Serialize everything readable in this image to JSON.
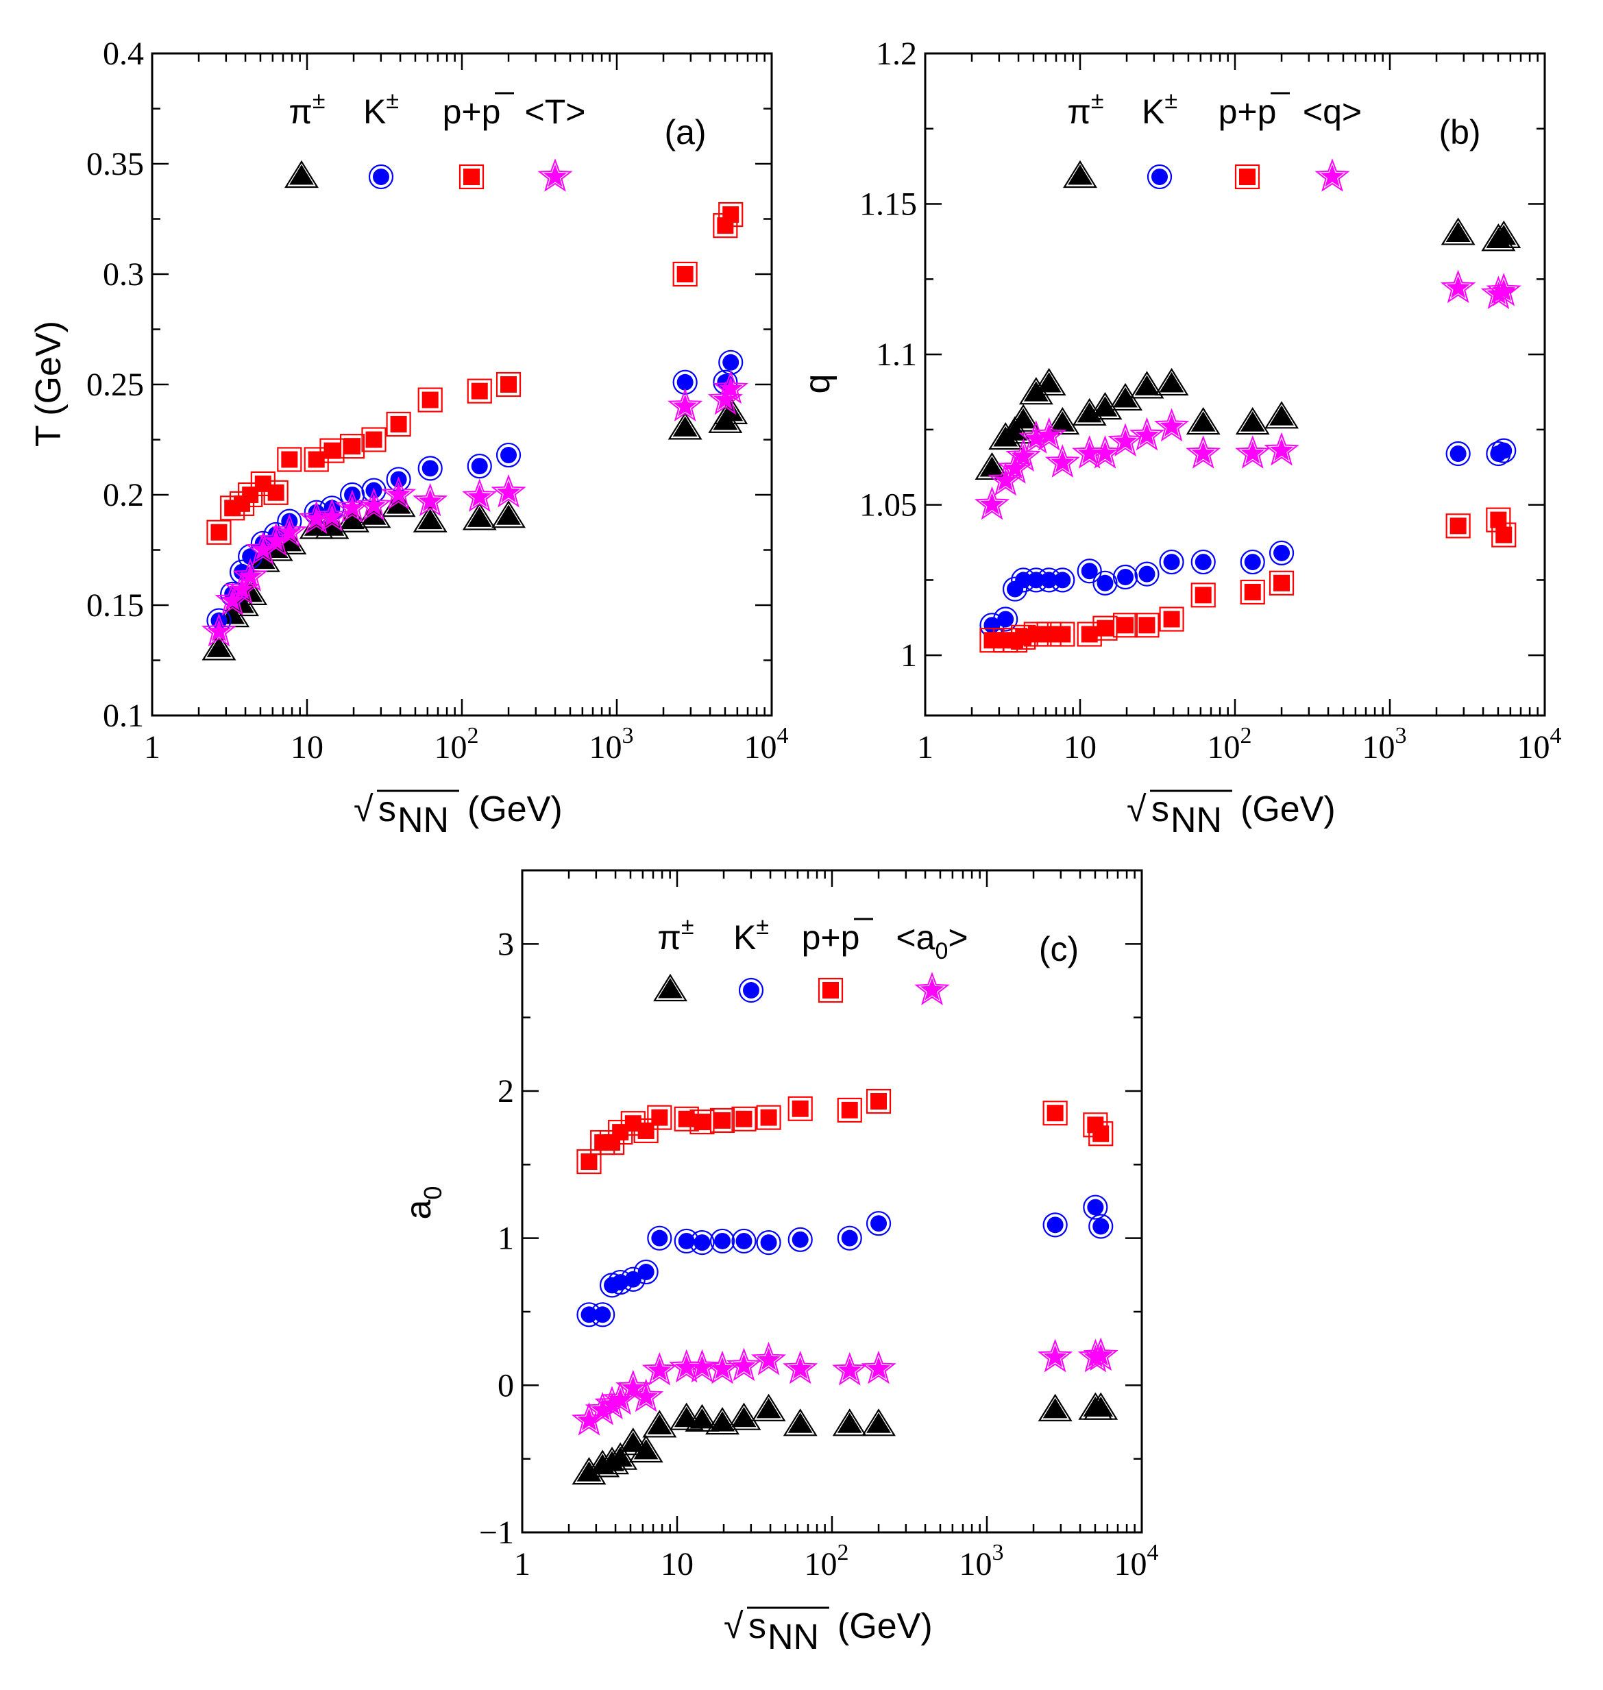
{
  "chart_data": [
    {
      "id": "a",
      "type": "scatter",
      "panel_label": "(a)",
      "xscale": "log",
      "xlim": [
        1,
        10000
      ],
      "ylim": [
        0.1,
        0.4
      ],
      "xlabel": "(GeV)",
      "xlabel_symbol": "√s",
      "xlabel_sub": "NN",
      "ylabel": "T (GeV)",
      "yticks": [
        "0.1",
        "0.15",
        "0.2",
        "0.25",
        "0.3",
        "0.35",
        "0.4"
      ],
      "ytick_values": [
        0.1,
        0.15,
        0.2,
        0.25,
        0.3,
        0.35,
        0.4
      ],
      "xtick_labels": [
        {
          "base": "1",
          "exp": ""
        },
        {
          "base": "10",
          "exp": ""
        },
        {
          "base": "10",
          "exp": "2"
        },
        {
          "base": "10",
          "exp": "3"
        },
        {
          "base": "10",
          "exp": "4"
        }
      ],
      "legend": [
        {
          "label": "π",
          "sup": "±",
          "marker": "triangle",
          "color": "#000000"
        },
        {
          "label": "K",
          "sup": "±",
          "marker": "circle",
          "color": "#0000ff"
        },
        {
          "label": "p+p",
          "overbar": "p",
          "marker": "square",
          "color": "#ff0000"
        },
        {
          "label": "<T>",
          "marker": "star",
          "color": "#ff00ff"
        }
      ],
      "series": [
        {
          "name": "π±",
          "marker": "triangle",
          "color": "#000000",
          "x": [
            2.7,
            3.3,
            3.8,
            4.3,
            5.2,
            6.3,
            7.7,
            11.5,
            14.5,
            19.6,
            27,
            39,
            62.4,
            130,
            200,
            2760,
            5020,
            5440
          ],
          "y": [
            0.13,
            0.145,
            0.15,
            0.155,
            0.17,
            0.175,
            0.178,
            0.185,
            0.185,
            0.188,
            0.19,
            0.195,
            0.188,
            0.189,
            0.19,
            0.23,
            0.233,
            0.237
          ]
        },
        {
          "name": "K±",
          "marker": "circle",
          "color": "#0000ff",
          "x": [
            2.7,
            3.3,
            3.8,
            4.3,
            5.2,
            6.3,
            7.7,
            11.5,
            14.5,
            19.6,
            27,
            39,
            62.4,
            130,
            200,
            2760,
            5020,
            5440
          ],
          "y": [
            0.143,
            0.155,
            0.165,
            0.172,
            0.178,
            0.182,
            0.188,
            0.192,
            0.194,
            0.2,
            0.202,
            0.207,
            0.212,
            0.213,
            0.218,
            0.251,
            0.251,
            0.26
          ]
        },
        {
          "name": "p+p̄",
          "marker": "square",
          "color": "#ff0000",
          "x": [
            2.7,
            3.3,
            3.8,
            4.3,
            5.2,
            6.3,
            7.7,
            11.5,
            14.5,
            19.6,
            27,
            39,
            62.4,
            130,
            200,
            2760,
            5020,
            5440
          ],
          "y": [
            0.183,
            0.194,
            0.196,
            0.2,
            0.205,
            0.201,
            0.216,
            0.216,
            0.22,
            0.222,
            0.225,
            0.232,
            0.243,
            0.247,
            0.25,
            0.3,
            0.322,
            0.327
          ]
        },
        {
          "name": "<T>",
          "marker": "star",
          "color": "#ff00ff",
          "x": [
            2.7,
            3.3,
            3.8,
            4.3,
            5.2,
            6.3,
            7.7,
            11.5,
            14.5,
            19.6,
            27,
            39,
            62.4,
            130,
            200,
            2760,
            5020,
            5440
          ],
          "y": [
            0.138,
            0.152,
            0.157,
            0.163,
            0.175,
            0.179,
            0.183,
            0.189,
            0.19,
            0.194,
            0.195,
            0.2,
            0.197,
            0.199,
            0.201,
            0.24,
            0.243,
            0.248
          ]
        }
      ]
    },
    {
      "id": "b",
      "type": "scatter",
      "panel_label": "(b)",
      "xscale": "log",
      "xlim": [
        1,
        10000
      ],
      "ylim": [
        0.98,
        1.2
      ],
      "xlabel": "(GeV)",
      "xlabel_symbol": "√s",
      "xlabel_sub": "NN",
      "ylabel": "q",
      "yticks": [
        "1",
        "1.05",
        "1.1",
        "1.15",
        "1.2"
      ],
      "ytick_values": [
        1.0,
        1.05,
        1.1,
        1.15,
        1.2
      ],
      "xtick_labels": [
        {
          "base": "1",
          "exp": ""
        },
        {
          "base": "10",
          "exp": ""
        },
        {
          "base": "10",
          "exp": "2"
        },
        {
          "base": "10",
          "exp": "3"
        },
        {
          "base": "10",
          "exp": "4"
        }
      ],
      "legend": [
        {
          "label": "π",
          "sup": "±",
          "marker": "triangle",
          "color": "#000000"
        },
        {
          "label": "K",
          "sup": "±",
          "marker": "circle",
          "color": "#0000ff"
        },
        {
          "label": "p+p",
          "overbar": "p",
          "marker": "square",
          "color": "#ff0000"
        },
        {
          "label": "<q>",
          "marker": "star",
          "color": "#ff00ff"
        }
      ],
      "series": [
        {
          "name": "π±",
          "marker": "triangle",
          "color": "#000000",
          "x": [
            2.7,
            3.3,
            3.8,
            4.3,
            5.2,
            6.3,
            7.7,
            11.5,
            14.5,
            19.6,
            27,
            39,
            62.4,
            130,
            200,
            2760,
            5020,
            5440
          ],
          "y": [
            1.062,
            1.072,
            1.074,
            1.078,
            1.087,
            1.09,
            1.077,
            1.08,
            1.082,
            1.085,
            1.089,
            1.09,
            1.077,
            1.077,
            1.079,
            1.14,
            1.138,
            1.139
          ]
        },
        {
          "name": "K±",
          "marker": "circle",
          "color": "#0000ff",
          "x": [
            2.7,
            3.3,
            3.8,
            4.3,
            5.2,
            6.3,
            7.7,
            11.5,
            14.5,
            19.6,
            27,
            39,
            62.4,
            130,
            200,
            2760,
            5020,
            5440
          ],
          "y": [
            1.01,
            1.012,
            1.022,
            1.025,
            1.025,
            1.025,
            1.025,
            1.028,
            1.024,
            1.026,
            1.027,
            1.031,
            1.031,
            1.031,
            1.034,
            1.067,
            1.067,
            1.068
          ]
        },
        {
          "name": "p+p̄",
          "marker": "square",
          "color": "#ff0000",
          "x": [
            2.7,
            3.3,
            3.8,
            4.3,
            5.2,
            6.3,
            7.7,
            11.5,
            14.5,
            19.6,
            27,
            39,
            62.4,
            130,
            200,
            2760,
            5020,
            5440
          ],
          "y": [
            1.005,
            1.005,
            1.005,
            1.006,
            1.007,
            1.007,
            1.007,
            1.007,
            1.009,
            1.01,
            1.01,
            1.012,
            1.02,
            1.021,
            1.024,
            1.043,
            1.045,
            1.04
          ]
        },
        {
          "name": "<q>",
          "marker": "star",
          "color": "#ff00ff",
          "x": [
            2.7,
            3.3,
            3.8,
            4.3,
            5.2,
            6.3,
            7.7,
            11.5,
            14.5,
            19.6,
            27,
            39,
            62.4,
            130,
            200,
            2760,
            5020,
            5440
          ],
          "y": [
            1.05,
            1.058,
            1.062,
            1.066,
            1.072,
            1.073,
            1.064,
            1.067,
            1.067,
            1.071,
            1.073,
            1.076,
            1.067,
            1.067,
            1.068,
            1.122,
            1.12,
            1.121
          ]
        }
      ]
    },
    {
      "id": "c",
      "type": "scatter",
      "panel_label": "(c)",
      "xscale": "log",
      "xlim": [
        1,
        10000
      ],
      "ylim": [
        -1,
        3.5
      ],
      "xlabel": "(GeV)",
      "xlabel_symbol": "√s",
      "xlabel_sub": "NN",
      "ylabel": "a",
      "ylabel_sub": "0",
      "yticks": [
        "−1",
        "0",
        "1",
        "2",
        "3"
      ],
      "ytick_values": [
        -1,
        0,
        1,
        2,
        3
      ],
      "xtick_labels": [
        {
          "base": "1",
          "exp": ""
        },
        {
          "base": "10",
          "exp": ""
        },
        {
          "base": "10",
          "exp": "2"
        },
        {
          "base": "10",
          "exp": "3"
        },
        {
          "base": "10",
          "exp": "4"
        }
      ],
      "legend": [
        {
          "label": "π",
          "sup": "±",
          "marker": "triangle",
          "color": "#000000"
        },
        {
          "label": "K",
          "sup": "±",
          "marker": "circle",
          "color": "#0000ff"
        },
        {
          "label": "p+p",
          "overbar": "p",
          "marker": "square",
          "color": "#ff0000"
        },
        {
          "label": "<a",
          "sub": "0",
          "tail": ">",
          "marker": "star",
          "color": "#ff00ff"
        }
      ],
      "series": [
        {
          "name": "π±",
          "marker": "triangle",
          "color": "#000000",
          "x": [
            2.7,
            3.3,
            3.8,
            4.3,
            5.2,
            6.3,
            7.7,
            11.5,
            14.5,
            19.6,
            27,
            39,
            62.4,
            130,
            200,
            2760,
            5020,
            5440
          ],
          "y": [
            -0.6,
            -0.55,
            -0.53,
            -0.5,
            -0.4,
            -0.45,
            -0.28,
            -0.23,
            -0.24,
            -0.26,
            -0.23,
            -0.17,
            -0.27,
            -0.27,
            -0.27,
            -0.17,
            -0.16,
            -0.16
          ]
        },
        {
          "name": "K±",
          "marker": "circle",
          "color": "#0000ff",
          "x": [
            2.7,
            3.3,
            3.8,
            4.3,
            5.2,
            6.3,
            7.7,
            11.5,
            14.5,
            19.6,
            27,
            39,
            62.4,
            130,
            200,
            2760,
            5020,
            5440
          ],
          "y": [
            0.48,
            0.48,
            0.68,
            0.7,
            0.72,
            0.77,
            1.0,
            0.98,
            0.97,
            0.98,
            0.98,
            0.97,
            0.99,
            1.0,
            1.1,
            1.09,
            1.21,
            1.08
          ]
        },
        {
          "name": "p+p̄",
          "marker": "square",
          "color": "#ff0000",
          "x": [
            2.7,
            3.3,
            3.8,
            4.3,
            5.2,
            6.3,
            7.7,
            11.5,
            14.5,
            19.6,
            27,
            39,
            62.4,
            130,
            200,
            2760,
            5020,
            5440
          ],
          "y": [
            1.52,
            1.65,
            1.65,
            1.72,
            1.78,
            1.73,
            1.82,
            1.81,
            1.79,
            1.8,
            1.81,
            1.82,
            1.88,
            1.87,
            1.93,
            1.85,
            1.77,
            1.71
          ]
        },
        {
          "name": "<a0>",
          "marker": "star",
          "color": "#ff00ff",
          "x": [
            2.7,
            3.3,
            3.8,
            4.3,
            5.2,
            6.3,
            7.7,
            11.5,
            14.5,
            19.6,
            27,
            39,
            62.4,
            130,
            200,
            2760,
            5020,
            5440
          ],
          "y": [
            -0.24,
            -0.17,
            -0.13,
            -0.1,
            -0.02,
            -0.08,
            0.1,
            0.12,
            0.12,
            0.11,
            0.13,
            0.17,
            0.11,
            0.1,
            0.11,
            0.19,
            0.19,
            0.2
          ]
        }
      ]
    }
  ]
}
